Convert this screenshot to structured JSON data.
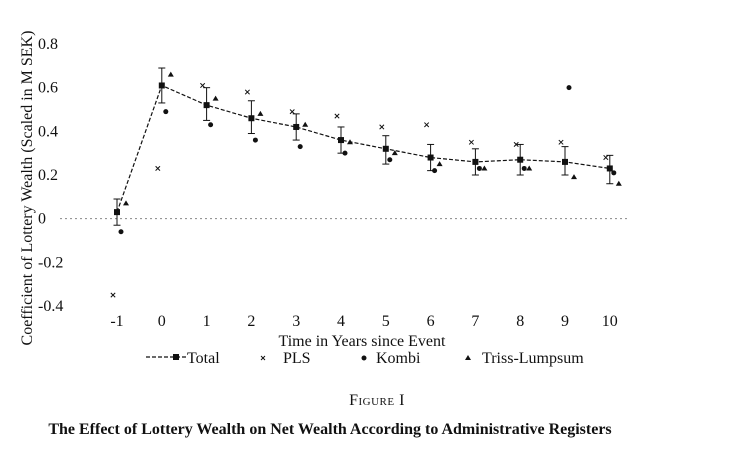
{
  "figure_label": "Figure I",
  "caption": "The Effect of Lottery Wealth on Net Wealth According to Administrative Registers",
  "chart_data": {
    "type": "line",
    "title": "",
    "xlabel": "Time in Years since Event",
    "ylabel": "Coefficient of Lottery Wealth (Scaled in M SEK)",
    "x": [
      -1,
      0,
      1,
      2,
      3,
      4,
      5,
      6,
      7,
      8,
      9,
      10
    ],
    "ylim": [
      -0.4,
      0.8
    ],
    "yticks": [
      "0.8",
      "0.6",
      "0.4",
      "0.2",
      "0",
      "-0.2",
      "-0.4"
    ],
    "xticks": [
      "-1",
      "0",
      "1",
      "2",
      "3",
      "4",
      "5",
      "6",
      "7",
      "8",
      "9",
      "10"
    ],
    "zero_line": "dotted",
    "legend_position": "bottom",
    "series": [
      {
        "name": "Total",
        "marker": "square",
        "line": "dashed",
        "values": [
          0.03,
          0.61,
          0.52,
          0.46,
          0.42,
          0.36,
          0.32,
          0.28,
          0.26,
          0.27,
          0.26,
          0.23
        ],
        "ci_low": [
          -0.03,
          0.53,
          0.45,
          0.39,
          0.36,
          0.3,
          0.25,
          0.22,
          0.2,
          0.2,
          0.2,
          0.16
        ],
        "ci_high": [
          0.09,
          0.69,
          0.6,
          0.54,
          0.48,
          0.42,
          0.38,
          0.34,
          0.32,
          0.34,
          0.33,
          0.29
        ]
      },
      {
        "name": "PLS",
        "marker": "cross",
        "values": [
          -0.35,
          0.23,
          0.61,
          0.58,
          0.49,
          0.47,
          0.42,
          0.43,
          0.35,
          0.34,
          0.35,
          0.28
        ]
      },
      {
        "name": "Kombi",
        "marker": "dot",
        "values": [
          -0.06,
          0.49,
          0.43,
          0.36,
          0.33,
          0.3,
          0.27,
          0.22,
          0.23,
          0.23,
          0.6,
          0.21
        ]
      },
      {
        "name": "Triss-Lumpsum",
        "marker": "triangle",
        "values": [
          0.07,
          0.66,
          0.55,
          0.48,
          0.43,
          0.35,
          0.3,
          0.25,
          0.23,
          0.23,
          0.19,
          0.16
        ]
      }
    ]
  }
}
